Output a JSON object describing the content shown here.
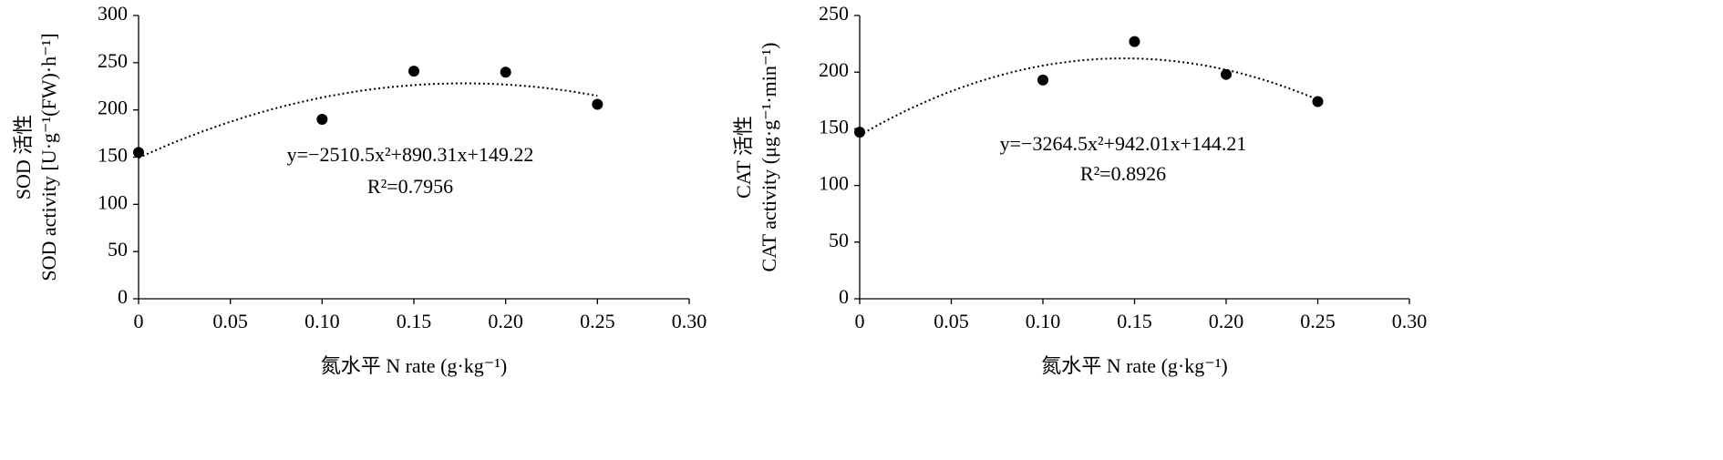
{
  "chart_data": [
    {
      "type": "scatter",
      "color": "#000000",
      "y_label": [
        "SOD 活性",
        "SOD activity [U·g⁻¹(FW)·h⁻¹]"
      ],
      "x_label": "氮水平 N rate (g·kg⁻¹)",
      "x": [
        0,
        0.1,
        0.15,
        0.2,
        0.25
      ],
      "values": [
        155,
        190,
        241,
        240,
        206
      ],
      "xlim": [
        0,
        0.3
      ],
      "xticks": [
        0,
        0.05,
        {
          "value": 0.1,
          "label": "0.10"
        },
        0.15,
        {
          "value": 0.2,
          "label": "0.20"
        },
        0.25,
        {
          "value": 0.3,
          "label": "0.30"
        }
      ],
      "ylim": [
        0,
        300
      ],
      "yticks": [
        0,
        50,
        100,
        150,
        200,
        250,
        300
      ],
      "equation": "y=−2510.5x²+890.31x+149.22",
      "r2": "R²=0.7956"
    },
    {
      "type": "scatter",
      "color": "#000000",
      "y_label": [
        "CAT 活性",
        "CAT activity (μg·g⁻¹·min⁻¹)"
      ],
      "x_label": "氮水平 N rate (g·kg⁻¹)",
      "x": [
        0,
        0.1,
        0.15,
        0.2,
        0.25
      ],
      "values": [
        147,
        193,
        227,
        198,
        174
      ],
      "xlim": [
        0,
        0.3
      ],
      "xticks": [
        0,
        0.05,
        {
          "value": 0.1,
          "label": "0.10"
        },
        0.15,
        {
          "value": 0.2,
          "label": "0.20"
        },
        0.25,
        {
          "value": 0.3,
          "label": "0.30"
        }
      ],
      "ylim": [
        0,
        250
      ],
      "yticks": [
        0,
        50,
        100,
        150,
        200,
        250
      ],
      "equation": "y=−3264.5x²+942.01x+144.21",
      "r2": "R²=0.8926"
    }
  ]
}
